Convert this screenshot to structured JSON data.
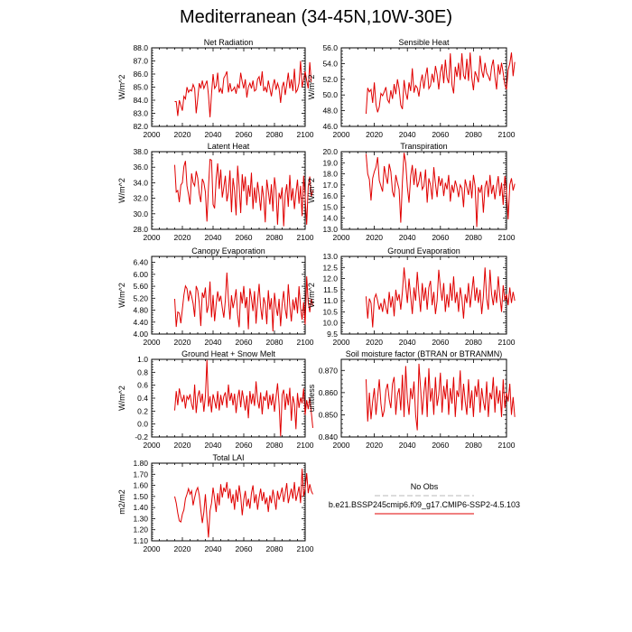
{
  "page_title": "Mediterranean (34-45N,10W-30E)",
  "x_axis": {
    "range": [
      2000,
      2100
    ],
    "ticks": [
      "2000",
      "2020",
      "2040",
      "2060",
      "2080",
      "2100"
    ]
  },
  "legend": {
    "entries": [
      {
        "label": "No Obs",
        "color": "#b8b8b8",
        "dashed": true
      },
      {
        "label": "b.e21.BSSP245cmip6.f09_g17.CMIP6-SSP2-4.5.103",
        "color": "#e00000",
        "dashed": false
      }
    ]
  },
  "chart_data": [
    {
      "type": "line",
      "title": "Net Radiation",
      "ylabel": "W/m^2",
      "ylim": [
        82.0,
        88.0
      ],
      "yticks": [
        "82.0",
        "83.0",
        "84.0",
        "85.0",
        "86.0",
        "87.0",
        "88.0"
      ],
      "color": "#e00000",
      "x_start": 2015,
      "values": [
        83.9,
        83.9,
        82.8,
        84.0,
        83.6,
        83.2,
        84.3,
        84.1,
        85.0,
        84.6,
        84.8,
        84.7,
        85.2,
        84.9,
        83.0,
        84.1,
        85.3,
        84.9,
        85.5,
        84.9,
        85.2,
        85.5,
        84.4,
        82.7,
        84.5,
        86.0,
        84.9,
        85.1,
        86.1,
        84.6,
        84.9,
        84.5,
        85.7,
        85.9,
        86.2,
        84.6,
        85.3,
        84.7,
        84.8,
        85.0,
        84.5,
        85.2,
        84.9,
        86.1,
        85.4,
        84.9,
        85.6,
        84.2,
        85.0,
        85.3,
        84.9,
        85.5,
        84.7,
        84.8,
        85.6,
        85.8,
        85.1,
        86.2,
        84.7,
        85.0,
        84.6,
        85.5,
        84.9,
        84.3,
        85.1,
        85.6,
        84.8,
        85.3,
        84.9,
        83.8,
        85.0,
        85.4,
        84.4,
        85.2,
        86.1,
        84.9,
        85.6,
        84.7,
        86.4,
        84.6,
        84.8,
        85.3,
        87.0,
        85.0,
        85.6,
        86.2,
        85.5,
        84.9,
        86.9,
        85.4
      ]
    },
    {
      "type": "line",
      "title": "Sensible Heat",
      "ylabel": "W/m^2",
      "ylim": [
        46.0,
        56.0
      ],
      "yticks": [
        "46.0",
        "48.0",
        "50.0",
        "52.0",
        "54.0",
        "56.0"
      ],
      "color": "#e00000",
      "x_start": 2015,
      "values": [
        47.6,
        50.9,
        50.4,
        50.7,
        49.0,
        51.6,
        48.8,
        47.8,
        48.5,
        50.2,
        49.9,
        50.4,
        51.0,
        49.4,
        49.0,
        50.6,
        49.5,
        51.4,
        50.1,
        52.0,
        50.8,
        48.7,
        48.2,
        51.9,
        50.3,
        49.4,
        51.6,
        50.5,
        53.4,
        50.3,
        51.2,
        50.9,
        49.8,
        51.6,
        52.6,
        50.8,
        52.4,
        53.5,
        50.8,
        51.2,
        52.7,
        51.6,
        53.7,
        52.6,
        50.7,
        52.9,
        53.9,
        51.5,
        54.5,
        52.2,
        51.5,
        55.3,
        51.3,
        50.2,
        53.6,
        52.3,
        54.1,
        51.9,
        55.3,
        52.5,
        52.0,
        54.6,
        51.8,
        55.4,
        52.2,
        50.6,
        53.0,
        52.4,
        51.6,
        55.0,
        53.1,
        52.2,
        54.1,
        52.8,
        52.4,
        51.8,
        53.6,
        54.5,
        52.3,
        50.7,
        53.9,
        52.6,
        54.1,
        52.8,
        51.3,
        50.7,
        53.2,
        54.0,
        55.4,
        52.4,
        54.2
      ]
    },
    {
      "type": "line",
      "title": "Latent Heat",
      "ylabel": "W/m^2",
      "ylim": [
        28.0,
        38.0
      ],
      "yticks": [
        "28.0",
        "30.0",
        "32.0",
        "34.0",
        "36.0",
        "38.0"
      ],
      "color": "#e00000",
      "x_start": 2015,
      "values": [
        36.3,
        32.8,
        33.0,
        31.5,
        33.7,
        34.0,
        36.1,
        36.8,
        33.6,
        32.5,
        31.2,
        35.2,
        34.0,
        33.6,
        35.5,
        34.6,
        32.6,
        31.5,
        34.5,
        34.0,
        32.8,
        29.0,
        33.4,
        37.0,
        36.9,
        31.2,
        30.7,
        34.5,
        36.5,
        33.2,
        35.7,
        32.1,
        33.4,
        34.9,
        31.6,
        32.8,
        35.6,
        30.2,
        34.6,
        33.0,
        29.8,
        36.2,
        33.5,
        30.1,
        35.1,
        32.9,
        34.8,
        31.1,
        33.7,
        32.2,
        35.3,
        30.6,
        33.4,
        31.4,
        34.1,
        32.5,
        30.4,
        33.6,
        32.0,
        28.9,
        34.4,
        32.9,
        31.2,
        33.8,
        30.3,
        34.7,
        33.1,
        28.6,
        32.7,
        31.9,
        33.4,
        28.4,
        32.5,
        33.8,
        30.9,
        35.0,
        31.7,
        33.3,
        30.6,
        32.7,
        34.4,
        31.3,
        33.6,
        29.7,
        34.9,
        32.1,
        28.6,
        33.5,
        34.8,
        32.2,
        33.0
      ]
    },
    {
      "type": "line",
      "title": "Transpiration",
      "ylabel": "W/m^2",
      "ylim": [
        13.0,
        20.0
      ],
      "yticks": [
        "13.0",
        "14.0",
        "15.0",
        "16.0",
        "17.0",
        "18.0",
        "19.0",
        "20.0"
      ],
      "color": "#e00000",
      "x_start": 2015,
      "values": [
        19.8,
        18.0,
        17.5,
        15.6,
        17.6,
        18.2,
        18.6,
        19.5,
        17.4,
        16.9,
        16.4,
        18.7,
        17.8,
        17.1,
        18.9,
        18.2,
        16.4,
        15.9,
        17.9,
        17.2,
        16.6,
        13.6,
        17.3,
        19.9,
        19.0,
        16.8,
        15.4,
        17.8,
        18.8,
        17.0,
        18.5,
        16.8,
        17.3,
        18.2,
        16.6,
        16.9,
        18.4,
        15.4,
        17.6,
        17.0,
        15.7,
        18.6,
        17.1,
        15.9,
        17.8,
        16.9,
        17.6,
        16.0,
        17.2,
        16.6,
        17.9,
        15.5,
        17.0,
        16.3,
        17.4,
        16.8,
        15.9,
        17.0,
        16.7,
        15.0,
        17.5,
        16.8,
        16.1,
        17.4,
        15.8,
        17.9,
        16.9,
        13.2,
        16.8,
        16.3,
        17.0,
        14.5,
        16.8,
        17.4,
        15.9,
        17.9,
        16.2,
        17.0,
        15.7,
        16.8,
        17.8,
        16.0,
        17.2,
        15.2,
        17.8,
        16.4,
        13.9,
        17.0,
        17.6,
        16.5,
        17.1
      ]
    },
    {
      "type": "line",
      "title": "Canopy Evaporation",
      "ylabel": "W/m^2",
      "ylim": [
        4.0,
        6.6
      ],
      "yticks": [
        "4.00",
        "4.40",
        "4.80",
        "5.20",
        "5.60",
        "6.00",
        "6.40"
      ],
      "color": "#e00000",
      "x_start": 2015,
      "values": [
        5.18,
        4.24,
        4.74,
        4.7,
        4.36,
        4.84,
        5.31,
        5.61,
        5.52,
        5.1,
        5.46,
        5.27,
        5.02,
        4.58,
        5.61,
        5.46,
        5.05,
        4.27,
        5.39,
        5.21,
        5.56,
        4.71,
        4.96,
        5.76,
        4.56,
        5.31,
        4.43,
        4.99,
        5.43,
        5.09,
        5.28,
        4.88,
        4.55,
        5.13,
        6.06,
        5.18,
        4.49,
        5.3,
        4.87,
        5.13,
        5.5,
        4.64,
        4.23,
        5.41,
        5.02,
        5.61,
        4.87,
        5.24,
        4.16,
        5.53,
        5.2,
        4.77,
        5.44,
        4.35,
        5.09,
        5.68,
        4.9,
        4.48,
        5.23,
        5.01,
        4.33,
        5.47,
        4.82,
        5.2,
        4.09,
        5.38,
        4.91,
        4.61,
        5.18,
        4.26,
        5.0,
        5.44,
        4.84,
        4.52,
        5.67,
        4.95,
        4.42,
        5.16,
        4.8,
        5.23,
        4.69,
        5.6,
        4.88,
        4.48,
        5.07,
        4.32,
        5.93,
        5.07,
        4.73,
        5.18,
        4.95
      ]
    },
    {
      "type": "line",
      "title": "Ground Evaporation",
      "ylabel": "W/m^2",
      "ylim": [
        9.5,
        13.0
      ],
      "yticks": [
        "9.5",
        "10.0",
        "10.5",
        "11.0",
        "11.5",
        "12.0",
        "12.5",
        "13.0"
      ],
      "color": "#e00000",
      "x_start": 2015,
      "values": [
        11.2,
        10.2,
        11.1,
        10.9,
        9.8,
        11.1,
        11.3,
        11.0,
        10.6,
        10.9,
        10.5,
        11.1,
        10.7,
        10.4,
        11.4,
        10.7,
        11.2,
        10.3,
        11.5,
        11.0,
        11.3,
        10.6,
        11.4,
        12.5,
        11.7,
        10.9,
        12.0,
        11.2,
        10.4,
        11.6,
        11.0,
        12.3,
        11.3,
        10.5,
        11.8,
        11.0,
        11.6,
        10.6,
        11.6,
        11.9,
        10.8,
        11.4,
        10.4,
        11.0,
        12.4,
        11.6,
        11.0,
        11.8,
        10.5,
        11.3,
        10.7,
        11.8,
        11.0,
        12.1,
        10.9,
        11.4,
        10.5,
        11.6,
        11.1,
        10.2,
        11.3,
        10.9,
        11.8,
        10.7,
        11.4,
        12.1,
        11.0,
        11.6,
        10.9,
        11.5,
        10.4,
        11.2,
        12.5,
        11.1,
        10.6,
        12.4,
        11.3,
        10.8,
        11.5,
        10.9,
        12.1,
        11.2,
        10.5,
        11.7,
        11.0,
        11.3,
        10.8,
        11.6,
        10.9,
        11.4,
        11.0
      ]
    },
    {
      "type": "line",
      "title": "Ground Heat + Snow Melt",
      "ylabel": "W/m^2",
      "ylim": [
        -0.2,
        1.0
      ],
      "yticks": [
        "-0.2",
        "0.0",
        "0.2",
        "0.4",
        "0.6",
        "0.8",
        "1.0"
      ],
      "color": "#e00000",
      "x_start": 2015,
      "values": [
        0.21,
        0.51,
        0.29,
        0.55,
        0.42,
        0.34,
        0.45,
        0.24,
        0.43,
        0.38,
        0.46,
        0.31,
        0.22,
        0.61,
        0.17,
        0.42,
        0.52,
        0.33,
        0.47,
        0.19,
        0.43,
        0.99,
        0.27,
        0.43,
        0.18,
        0.46,
        0.36,
        0.24,
        0.51,
        0.21,
        0.45,
        0.29,
        0.43,
        0.49,
        0.25,
        0.61,
        0.36,
        0.48,
        0.29,
        0.47,
        0.17,
        0.4,
        0.53,
        0.26,
        0.52,
        0.37,
        0.21,
        0.44,
        0.09,
        0.51,
        0.31,
        0.47,
        0.28,
        0.66,
        0.37,
        0.24,
        0.49,
        0.15,
        0.43,
        0.36,
        0.52,
        0.23,
        0.45,
        0.29,
        0.47,
        0.19,
        0.41,
        0.63,
        0.31,
        -0.19,
        0.45,
        0.53,
        0.22,
        0.47,
        0.29,
        0.56,
        0.05,
        0.43,
        0.31,
        -0.08,
        0.48,
        0.25,
        0.41,
        0.32,
        0.55,
        0.14,
        0.37,
        0.23,
        0.41,
        0.18,
        -0.06
      ]
    },
    {
      "type": "line",
      "title": "Soil moisture factor (BTRAN or BTRANMN)",
      "ylabel": "unitless",
      "ylim": [
        0.84,
        0.875
      ],
      "yticks": [
        "0.840",
        "0.850",
        "0.860",
        "0.870"
      ],
      "color": "#e00000",
      "x_start": 2015,
      "values": [
        0.866,
        0.847,
        0.86,
        0.848,
        0.856,
        0.862,
        0.85,
        0.858,
        0.866,
        0.855,
        0.849,
        0.852,
        0.861,
        0.864,
        0.857,
        0.853,
        0.864,
        0.867,
        0.85,
        0.859,
        0.862,
        0.852,
        0.868,
        0.849,
        0.872,
        0.857,
        0.85,
        0.862,
        0.857,
        0.865,
        0.85,
        0.843,
        0.873,
        0.862,
        0.85,
        0.86,
        0.867,
        0.849,
        0.871,
        0.856,
        0.862,
        0.85,
        0.867,
        0.854,
        0.859,
        0.869,
        0.851,
        0.863,
        0.857,
        0.866,
        0.85,
        0.862,
        0.855,
        0.867,
        0.849,
        0.861,
        0.858,
        0.87,
        0.852,
        0.864,
        0.856,
        0.85,
        0.866,
        0.853,
        0.861,
        0.849,
        0.863,
        0.858,
        0.866,
        0.851,
        0.862,
        0.856,
        0.852,
        0.865,
        0.849,
        0.86,
        0.857,
        0.867,
        0.851,
        0.863,
        0.855,
        0.861,
        0.849,
        0.866,
        0.853,
        0.86,
        0.856,
        0.864,
        0.85,
        0.858,
        0.849
      ]
    },
    {
      "type": "line",
      "title": "Total LAI",
      "ylabel": "m2/m2",
      "ylim": [
        1.1,
        1.8
      ],
      "yticks": [
        "1.10",
        "1.20",
        "1.30",
        "1.40",
        "1.50",
        "1.60",
        "1.70",
        "1.80"
      ],
      "color": "#e00000",
      "x_start": 2015,
      "values": [
        1.5,
        1.44,
        1.35,
        1.28,
        1.27,
        1.34,
        1.38,
        1.48,
        1.52,
        1.57,
        1.52,
        1.55,
        1.42,
        1.49,
        1.55,
        1.58,
        1.51,
        1.38,
        1.26,
        1.36,
        1.52,
        1.31,
        1.13,
        1.37,
        1.44,
        1.58,
        1.48,
        1.36,
        1.53,
        1.42,
        1.61,
        1.49,
        1.58,
        1.54,
        1.63,
        1.48,
        1.57,
        1.44,
        1.52,
        1.38,
        1.56,
        1.45,
        1.6,
        1.5,
        1.33,
        1.47,
        1.55,
        1.41,
        1.48,
        1.39,
        1.53,
        1.6,
        1.44,
        1.52,
        1.38,
        1.49,
        1.57,
        1.46,
        1.54,
        1.43,
        1.49,
        1.36,
        1.51,
        1.44,
        1.56,
        1.48,
        1.38,
        1.55,
        1.47,
        1.52,
        1.58,
        1.45,
        1.53,
        1.62,
        1.44,
        1.51,
        1.57,
        1.48,
        1.63,
        1.46,
        1.52,
        1.59,
        1.44,
        1.75,
        1.5,
        1.57,
        1.71,
        1.53,
        1.61,
        1.55,
        1.52
      ]
    }
  ]
}
